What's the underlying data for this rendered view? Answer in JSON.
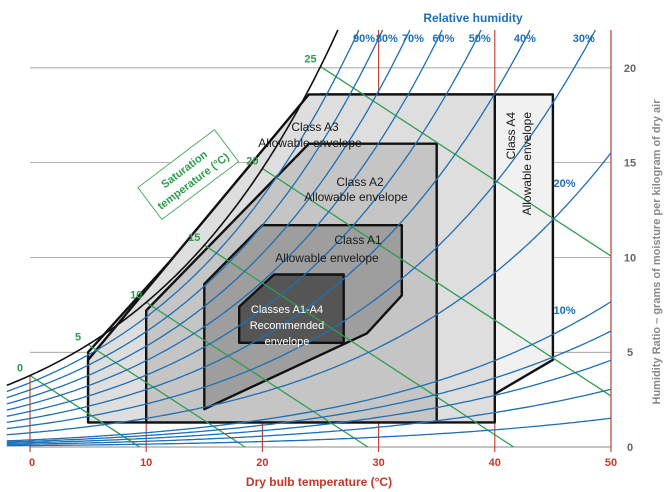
{
  "chart_data": {
    "type": "psychrometric",
    "x_axis": {
      "label": "Dry bulb temperature (°C)",
      "range": [
        0,
        50
      ],
      "ticks": [
        "0",
        "10",
        "20",
        "30",
        "40",
        "50"
      ]
    },
    "y_axis": {
      "label": "Humidity Ratio – grams of moisture per kilogram of dry air",
      "range": [
        0,
        22
      ],
      "ticks": [
        "0",
        "5",
        "10",
        "15",
        "20"
      ]
    },
    "relative_humidity": {
      "title": "Relative humidity",
      "labeled_curves": [
        "90%",
        "80%",
        "70%",
        "60%",
        "50%",
        "40%",
        "30%",
        "20%",
        "10%"
      ],
      "curve_values": [
        0.1,
        0.2,
        0.3,
        0.4,
        0.5,
        0.6,
        0.7,
        0.8,
        0.9
      ],
      "inner_curve_values": [
        0.02,
        0.04,
        0.06,
        0.08
      ],
      "top_labels": [
        {
          "text": "90%",
          "rh": 0.9
        },
        {
          "text": "80%",
          "rh": 0.8
        },
        {
          "text": "70%",
          "rh": 0.7
        },
        {
          "text": "60%",
          "rh": 0.6
        },
        {
          "text": "50%",
          "rh": 0.5
        },
        {
          "text": "40%",
          "rh": 0.4
        },
        {
          "text": "30%",
          "rh": 0.3
        }
      ],
      "side_labels": [
        {
          "text": "20%",
          "rh": 0.2
        },
        {
          "text": "10%",
          "rh": 0.1
        }
      ]
    },
    "saturation_temperature": {
      "title_line1": "Saturation",
      "title_line2": "temperature (°C)",
      "ticks": [
        "0",
        "5",
        "10",
        "15",
        "20",
        "25"
      ],
      "values": [
        0,
        5,
        10,
        15,
        20,
        25
      ]
    },
    "envelopes": [
      {
        "name": "Class A4 Allowable envelope",
        "label_line1": "Class A4",
        "label_line2": "Allowable envelope",
        "fill": "#f1f1f1",
        "points": [
          [
            5,
            1.3
          ],
          [
            5,
            5.0
          ],
          [
            25,
            18.6
          ],
          [
            45,
            18.6
          ],
          [
            45,
            4.6
          ],
          [
            40,
            2.8
          ],
          [
            30,
            1.8
          ],
          [
            20,
            1.4
          ],
          [
            5,
            1.3
          ]
        ]
      },
      {
        "name": "Class A3 Allowable envelope",
        "label_line1": "Class A3",
        "label_line2": "Allowable envelope",
        "fill": "#dedede",
        "points": [
          [
            5,
            1.3
          ],
          [
            5,
            4.6
          ],
          [
            24,
            18.6
          ],
          [
            40,
            18.6
          ],
          [
            40,
            1.3
          ],
          [
            5,
            1.3
          ]
        ]
      },
      {
        "name": "Class A2 Allowable envelope",
        "label_line1": "Class A2",
        "label_line2": "Allowable envelope",
        "fill": "#c5c5c5",
        "points": [
          [
            10,
            1.3
          ],
          [
            10,
            7.2
          ],
          [
            24,
            16.0
          ],
          [
            35,
            16.0
          ],
          [
            35,
            1.3
          ],
          [
            10,
            1.3
          ]
        ]
      },
      {
        "name": "Class A1 Allowable envelope",
        "label_line1": "Class A1",
        "label_line2": "Allowable envelope",
        "fill": "#9e9e9e",
        "points": [
          [
            15,
            2.0
          ],
          [
            15,
            8.6
          ],
          [
            20,
            11.7
          ],
          [
            32,
            11.7
          ],
          [
            32,
            8.0
          ],
          [
            29,
            6.0
          ],
          [
            15,
            2.0
          ]
        ]
      },
      {
        "name": "Classes A1-A4 Recommended envelope",
        "label_line1": "Classes A1-A4",
        "label_line2": "Recommended",
        "label_line3": "envelope",
        "fill": "#555555",
        "points": [
          [
            18,
            5.5
          ],
          [
            18,
            7.4
          ],
          [
            21,
            9.1
          ],
          [
            27,
            9.1
          ],
          [
            27,
            5.5
          ],
          [
            18,
            5.5
          ]
        ]
      }
    ],
    "colors": {
      "dry_bulb": "#c0392b",
      "relative_humidity": "#1f6fb5",
      "saturation": "#2e9e4f",
      "humidity_ratio_grid": "#888888"
    }
  }
}
